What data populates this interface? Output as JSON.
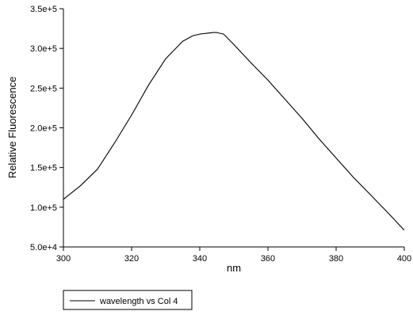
{
  "chart_data": {
    "type": "line",
    "title": "",
    "xlabel": "nm",
    "ylabel": "Relative Fluorescence",
    "xlim": [
      300,
      400
    ],
    "ylim": [
      50000,
      350000
    ],
    "xticks": [
      300,
      320,
      340,
      360,
      380,
      400
    ],
    "xtick_labels": [
      "300",
      "320",
      "340",
      "360",
      "380",
      "400"
    ],
    "yticks": [
      50000,
      100000,
      150000,
      200000,
      250000,
      300000,
      350000
    ],
    "ytick_labels": [
      "5.0e+4",
      "1.0e+5",
      "1.5e+5",
      "2.0e+5",
      "2.5e+5",
      "3.0e+5",
      "3.5e+5"
    ],
    "grid": false,
    "legend": {
      "placement": "bottom-left, below plot",
      "entries": [
        "wavelength vs Col 4"
      ]
    },
    "series": [
      {
        "name": "wavelength vs Col 4",
        "color": "#000000",
        "x": [
          300,
          305,
          310,
          315,
          320,
          325,
          330,
          335,
          338,
          340,
          342,
          344,
          345,
          347,
          350,
          355,
          360,
          365,
          370,
          375,
          380,
          385,
          390,
          395,
          400
        ],
        "y": [
          110000,
          127000,
          148000,
          181000,
          216000,
          254000,
          287000,
          309000,
          316000,
          318000,
          319000,
          320000,
          320000,
          318000,
          305000,
          282000,
          260000,
          236000,
          212000,
          186000,
          162000,
          138000,
          116000,
          94000,
          71000
        ]
      }
    ]
  }
}
